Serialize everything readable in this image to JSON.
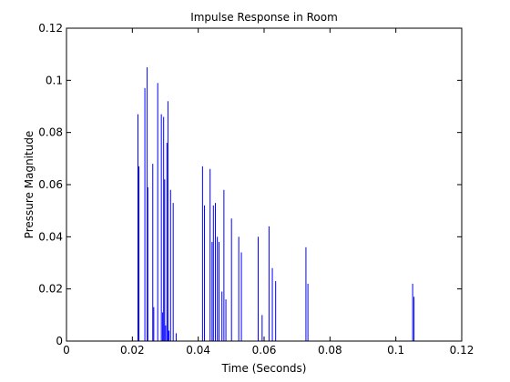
{
  "chart_data": {
    "type": "bar",
    "title": "Impulse Response in Room",
    "xlabel": "Time (Seconds)",
    "ylabel": "Pressure Magnitude",
    "xlim": [
      0,
      0.12
    ],
    "ylim": [
      0,
      0.12
    ],
    "grid": false,
    "legend": "none",
    "x_ticks": [
      0,
      0.02,
      0.04,
      0.06,
      0.08,
      0.1,
      0.12
    ],
    "x_tick_labels": [
      "0",
      "0.02",
      "0.04",
      "0.06",
      "0.08",
      "0.1",
      "0.12"
    ],
    "y_ticks": [
      0,
      0.02,
      0.04,
      0.06,
      0.08,
      0.1,
      0.12
    ],
    "y_tick_labels": [
      "0",
      "0.02",
      "0.04",
      "0.06",
      "0.08",
      "0.1",
      "0.12"
    ],
    "series": [
      {
        "color": "#0000ff",
        "x": [
          0.0217,
          0.022,
          0.0238,
          0.0245,
          0.0247,
          0.0262,
          0.0265,
          0.0277,
          0.0288,
          0.0292,
          0.0295,
          0.0298,
          0.0301,
          0.0305,
          0.0308,
          0.0311,
          0.0316,
          0.0324,
          0.0333,
          0.0413,
          0.0419,
          0.0436,
          0.0442,
          0.0446,
          0.0452,
          0.0458,
          0.0463,
          0.0472,
          0.0478,
          0.0484,
          0.0501,
          0.0523,
          0.0531,
          0.0582,
          0.0594,
          0.0615,
          0.0625,
          0.0635,
          0.0727,
          0.0733,
          0.1051,
          0.1055
        ],
        "y": [
          0.087,
          0.067,
          0.097,
          0.105,
          0.059,
          0.068,
          0.013,
          0.099,
          0.087,
          0.011,
          0.086,
          0.062,
          0.006,
          0.076,
          0.092,
          0.004,
          0.058,
          0.053,
          0.003,
          0.067,
          0.052,
          0.066,
          0.038,
          0.052,
          0.053,
          0.04,
          0.038,
          0.019,
          0.058,
          0.016,
          0.047,
          0.04,
          0.034,
          0.04,
          0.01,
          0.044,
          0.028,
          0.023,
          0.036,
          0.022,
          0.022,
          0.017
        ]
      }
    ]
  }
}
